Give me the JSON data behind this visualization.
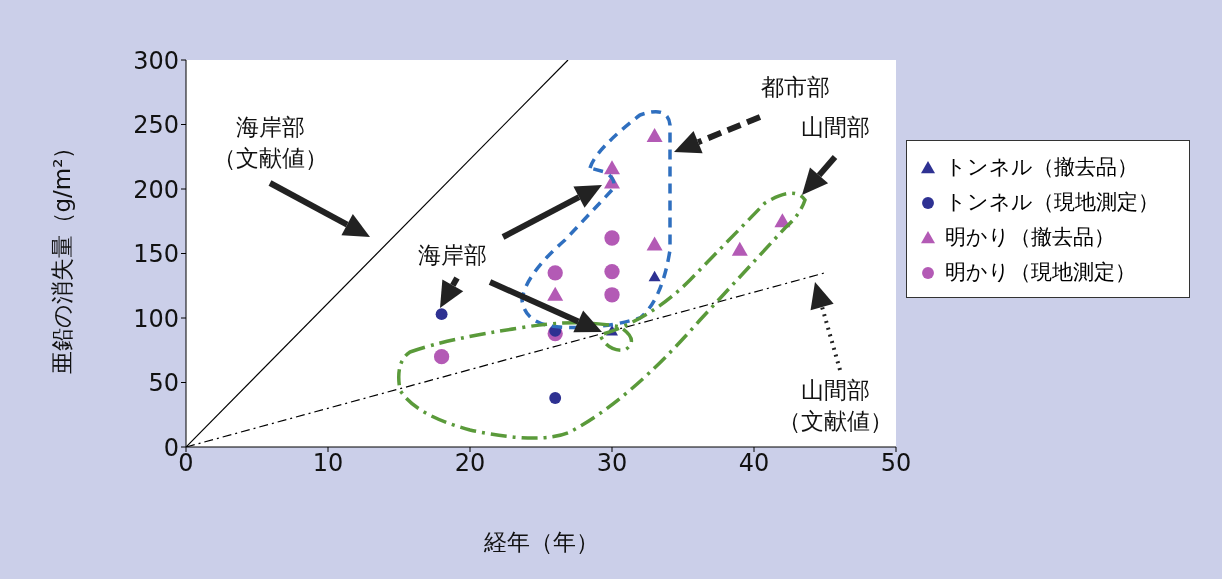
{
  "chart_data": {
    "type": "scatter",
    "xlabel": "経年（年）",
    "ylabel": "亜鉛の消失量（g/m²）",
    "xlim": [
      0,
      50
    ],
    "xticks": [
      0,
      10,
      20,
      30,
      40,
      50
    ],
    "ylim": [
      0,
      300
    ],
    "yticks": [
      0,
      50,
      100,
      150,
      200,
      250,
      300
    ],
    "grid": false,
    "legend": "right",
    "annotations": [
      "海岸部（文献値）",
      "都市部",
      "山間部",
      "海岸部",
      "山間部（文献値）"
    ],
    "series": [
      {
        "name": "トンネル（撤去品）",
        "color": "#2e3192",
        "marker": "triangle",
        "x": [
          30,
          33
        ],
        "values": [
          90,
          132
        ]
      },
      {
        "name": "トンネル（現地測定）",
        "color": "#2e3192",
        "marker": "circle",
        "x": [
          18,
          26,
          26
        ],
        "values": [
          103,
          90,
          38
        ]
      },
      {
        "name": "明かり（撤去品）",
        "color": "#b35ab5",
        "marker": "triangle",
        "x": [
          26,
          30,
          30,
          33,
          33,
          39,
          42
        ],
        "values": [
          118,
          216,
          205,
          241,
          157,
          153,
          175
        ]
      },
      {
        "name": "明かり（現地測定）",
        "color": "#b35ab5",
        "marker": "circle",
        "x": [
          18,
          26,
          26,
          30,
          30,
          30
        ],
        "values": [
          70,
          135,
          88,
          162,
          136,
          118
        ]
      },
      {
        "type": "line",
        "color": "#000000",
        "line_style": "solid",
        "x": [
          0,
          26.9
        ],
        "values": [
          0,
          300
        ]
      },
      {
        "type": "line",
        "color": "#000000",
        "line_style": "dashed",
        "x": [
          0,
          45
        ],
        "values": [
          0,
          135
        ]
      }
    ]
  }
}
